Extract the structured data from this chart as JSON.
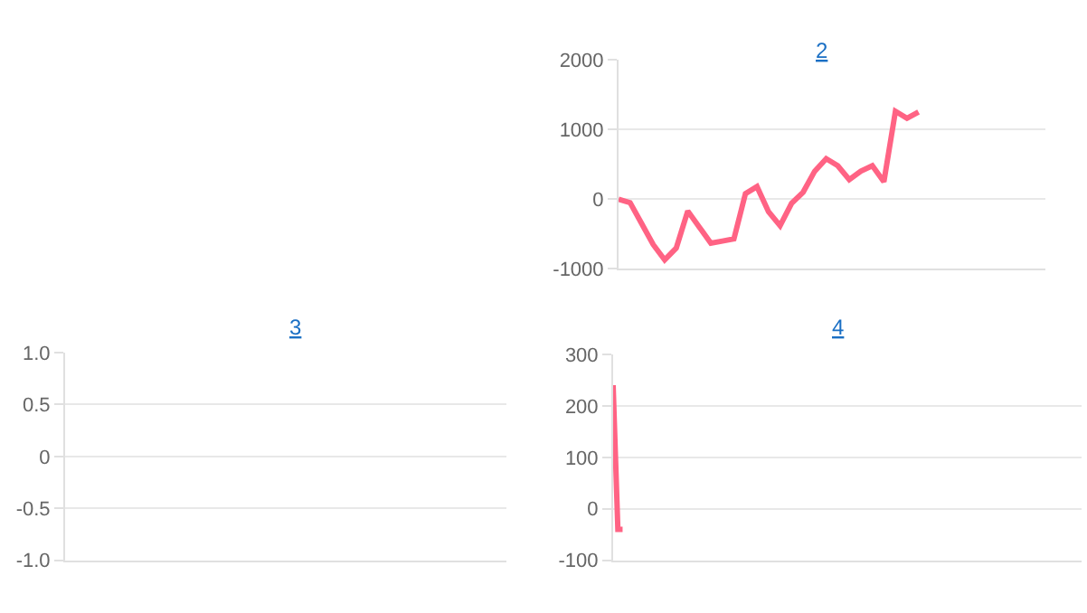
{
  "chart_data": [
    {
      "type": "line",
      "title": "2",
      "categories": [
        null,
        null,
        null,
        null,
        null,
        null,
        null,
        null,
        null,
        null,
        null,
        null,
        null,
        null,
        null,
        null,
        null,
        null,
        null,
        null,
        null,
        null,
        null,
        null,
        null,
        null,
        null,
        null,
        null,
        null,
        null,
        null,
        null,
        null,
        null,
        null,
        null,
        null
      ],
      "series": [
        {
          "color": "#ff6384",
          "values": [
            0,
            -50,
            -350,
            -650,
            -870,
            -700,
            -170,
            -400,
            -630,
            -600,
            -570,
            80,
            180,
            -180,
            -380,
            -60,
            100,
            400,
            580,
            480,
            280,
            400,
            480,
            250,
            1260,
            1160,
            1250,
            null,
            null,
            null,
            null,
            null,
            null,
            null,
            null,
            null,
            null,
            null
          ]
        }
      ],
      "ylim": [
        -1000,
        2000
      ],
      "yticks": [
        -1000,
        0,
        1000,
        2000
      ],
      "grid": "y",
      "marker": "none",
      "tick_labels": "y"
    },
    {
      "type": "line",
      "title": "3",
      "categories": [
        null,
        null,
        null,
        null,
        null,
        null,
        null,
        null,
        null,
        null
      ],
      "series": [
        {
          "color": "#ff6384",
          "values": [
            null,
            null,
            null,
            null,
            null,
            null,
            null,
            null,
            null,
            null
          ]
        }
      ],
      "ylim": [
        -1.0,
        1.0
      ],
      "yticks": [
        {
          "value": -1.0,
          "label": "-1.0"
        },
        -0.5,
        0,
        0.5,
        {
          "value": 1.0,
          "label": "1.0"
        }
      ],
      "grid": "y",
      "marker": "none",
      "tick_labels": "y"
    },
    {
      "type": "line",
      "title": "4",
      "categories": [
        null,
        null,
        null,
        null,
        null,
        null,
        null,
        null,
        null,
        null,
        null,
        null,
        null,
        null,
        null,
        null,
        null,
        null,
        null,
        null,
        null,
        null,
        null,
        null,
        null,
        null,
        null,
        null,
        null,
        null,
        null,
        null,
        null,
        null,
        null,
        null,
        null,
        null,
        null,
        null,
        null,
        null,
        null,
        null,
        null,
        null,
        null,
        null,
        null,
        null,
        null,
        null,
        null,
        null,
        null,
        null,
        null,
        null,
        null,
        null,
        null,
        null,
        null,
        null,
        null,
        null,
        null,
        null,
        null,
        null,
        null,
        null,
        null,
        null,
        null,
        null,
        null,
        null,
        null,
        null,
        null,
        null,
        null,
        null,
        null,
        null,
        null,
        null,
        null,
        null,
        null,
        null,
        null,
        null,
        null,
        null,
        null,
        null,
        null,
        null
      ],
      "series": [
        {
          "color": "#ff6384",
          "values": [
            240,
            -40,
            -40,
            null,
            null,
            null,
            null,
            null,
            null,
            null,
            null,
            null,
            null,
            null,
            null,
            null,
            null,
            null,
            null,
            null,
            null,
            null,
            null,
            null,
            null,
            null,
            null,
            null,
            null,
            null,
            null,
            null,
            null,
            null,
            null,
            null,
            null,
            null,
            null,
            null,
            null,
            null,
            null,
            null,
            null,
            null,
            null,
            null,
            null,
            null,
            null,
            null,
            null,
            null,
            null,
            null,
            null,
            null,
            null,
            null,
            null,
            null,
            null,
            null,
            null,
            null,
            null,
            null,
            null,
            null,
            null,
            null,
            null,
            null,
            null,
            null,
            null,
            null,
            null,
            null,
            null,
            null,
            null,
            null,
            null,
            null,
            null,
            null,
            null,
            null,
            null,
            null,
            null,
            null,
            null,
            null,
            null,
            null,
            null,
            null
          ]
        }
      ],
      "ylim": [
        -100,
        300
      ],
      "yticks": [
        -100,
        0,
        100,
        200,
        300
      ],
      "grid": "y",
      "marker": "none",
      "tick_labels": "y"
    }
  ]
}
